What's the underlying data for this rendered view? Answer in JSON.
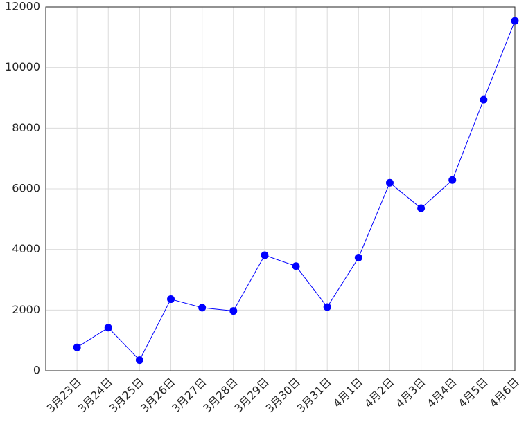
{
  "chart_data": {
    "type": "line",
    "categories": [
      "3月23日",
      "3月24日",
      "3月25日",
      "3月26日",
      "3月27日",
      "3月28日",
      "3月29日",
      "3月30日",
      "3月31日",
      "4月1日",
      "4月2日",
      "4月3日",
      "4月4日",
      "4月5日",
      "4月6日"
    ],
    "values": [
      770,
      1420,
      350,
      2360,
      2080,
      1970,
      3810,
      3450,
      2100,
      3730,
      6200,
      5360,
      6290,
      8940,
      11540
    ],
    "color": "#0000ff",
    "ylim": [
      0,
      12000
    ],
    "yticks": [
      0,
      2000,
      4000,
      6000,
      8000,
      10000,
      12000
    ],
    "grid": true
  }
}
